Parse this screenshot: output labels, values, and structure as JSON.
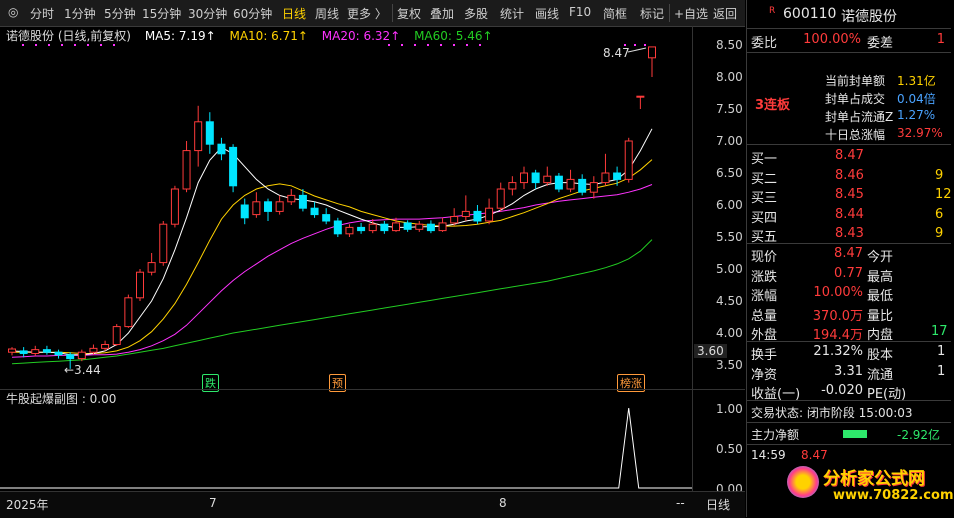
{
  "toolbar": {
    "items": [
      "分时",
      "1分钟",
      "5分钟",
      "15分钟",
      "30分钟",
      "60分钟",
      "日线",
      "周线",
      "更多 〉",
      "复权",
      "叠加",
      "多股",
      "统计",
      "画线",
      "F10",
      "简框",
      "标记",
      "+自选",
      "返回"
    ],
    "active": "日线"
  },
  "legend": {
    "stock": "诺德股份 (日线,前复权)",
    "ma5": "MA5: 7.19↑",
    "ma10": "MA10: 6.71↑",
    "ma20": "MA20: 6.32↑",
    "ma60": "MA60: 5.46↑"
  },
  "colors": {
    "up": "#ff3b3b",
    "down": "#00e5ff",
    "ma5": "#ffffff",
    "ma10": "#ffd200",
    "ma20": "#ff33ff",
    "ma60": "#22cc22",
    "accent": "#ffd200"
  },
  "chart": {
    "y_ticks": [
      "8.50",
      "8.00",
      "7.50",
      "7.00",
      "6.50",
      "6.00",
      "5.50",
      "5.00",
      "4.50",
      "4.00",
      "3.50"
    ],
    "high_label": "8.47",
    "low_label": "←3.44",
    "current_tag": "3.60",
    "tags": {
      "t1": "跌",
      "t2": "预",
      "t3": "榜涨"
    }
  },
  "chart_data": {
    "type": "candlestick",
    "ylim": [
      3.4,
      8.6
    ],
    "candles": [
      {
        "o": 3.7,
        "c": 3.75,
        "h": 3.78,
        "l": 3.65
      },
      {
        "o": 3.72,
        "c": 3.68,
        "h": 3.78,
        "l": 3.62
      },
      {
        "o": 3.68,
        "c": 3.74,
        "h": 3.8,
        "l": 3.64
      },
      {
        "o": 3.74,
        "c": 3.7,
        "h": 3.8,
        "l": 3.66
      },
      {
        "o": 3.7,
        "c": 3.66,
        "h": 3.74,
        "l": 3.6
      },
      {
        "o": 3.66,
        "c": 3.6,
        "h": 3.7,
        "l": 3.44
      },
      {
        "o": 3.6,
        "c": 3.7,
        "h": 3.74,
        "l": 3.56
      },
      {
        "o": 3.7,
        "c": 3.76,
        "h": 3.82,
        "l": 3.66
      },
      {
        "o": 3.76,
        "c": 3.82,
        "h": 3.88,
        "l": 3.72
      },
      {
        "o": 3.82,
        "c": 4.1,
        "h": 4.14,
        "l": 3.8
      },
      {
        "o": 4.1,
        "c": 4.55,
        "h": 4.6,
        "l": 4.08
      },
      {
        "o": 4.55,
        "c": 4.95,
        "h": 5.0,
        "l": 4.5
      },
      {
        "o": 4.95,
        "c": 5.1,
        "h": 5.25,
        "l": 4.9
      },
      {
        "o": 5.1,
        "c": 5.7,
        "h": 5.75,
        "l": 5.05
      },
      {
        "o": 5.7,
        "c": 6.25,
        "h": 6.3,
        "l": 5.65
      },
      {
        "o": 6.25,
        "c": 6.85,
        "h": 7.0,
        "l": 6.2
      },
      {
        "o": 6.85,
        "c": 7.3,
        "h": 7.55,
        "l": 6.6
      },
      {
        "o": 7.3,
        "c": 6.95,
        "h": 7.45,
        "l": 6.8
      },
      {
        "o": 6.95,
        "c": 6.8,
        "h": 7.05,
        "l": 6.7
      },
      {
        "o": 6.9,
        "c": 6.3,
        "h": 6.95,
        "l": 6.2
      },
      {
        "o": 6.0,
        "c": 5.8,
        "h": 6.1,
        "l": 5.7
      },
      {
        "o": 5.85,
        "c": 6.05,
        "h": 6.2,
        "l": 5.8
      },
      {
        "o": 6.05,
        "c": 5.9,
        "h": 6.1,
        "l": 5.75
      },
      {
        "o": 5.9,
        "c": 6.05,
        "h": 6.15,
        "l": 5.85
      },
      {
        "o": 6.05,
        "c": 6.15,
        "h": 6.25,
        "l": 6.0
      },
      {
        "o": 6.15,
        "c": 5.95,
        "h": 6.25,
        "l": 5.9
      },
      {
        "o": 5.95,
        "c": 5.85,
        "h": 6.05,
        "l": 5.8
      },
      {
        "o": 5.85,
        "c": 5.75,
        "h": 5.95,
        "l": 5.7
      },
      {
        "o": 5.75,
        "c": 5.55,
        "h": 5.8,
        "l": 5.5
      },
      {
        "o": 5.55,
        "c": 5.65,
        "h": 5.7,
        "l": 5.5
      },
      {
        "o": 5.65,
        "c": 5.6,
        "h": 5.72,
        "l": 5.55
      },
      {
        "o": 5.6,
        "c": 5.7,
        "h": 5.78,
        "l": 5.56
      },
      {
        "o": 5.7,
        "c": 5.6,
        "h": 5.75,
        "l": 5.55
      },
      {
        "o": 5.6,
        "c": 5.72,
        "h": 5.8,
        "l": 5.58
      },
      {
        "o": 5.72,
        "c": 5.62,
        "h": 5.76,
        "l": 5.58
      },
      {
        "o": 5.62,
        "c": 5.7,
        "h": 5.75,
        "l": 5.58
      },
      {
        "o": 5.7,
        "c": 5.6,
        "h": 5.76,
        "l": 5.56
      },
      {
        "o": 5.6,
        "c": 5.72,
        "h": 5.8,
        "l": 5.58
      },
      {
        "o": 5.72,
        "c": 5.82,
        "h": 5.95,
        "l": 5.68
      },
      {
        "o": 5.82,
        "c": 5.9,
        "h": 6.15,
        "l": 5.75
      },
      {
        "o": 5.9,
        "c": 5.75,
        "h": 6.0,
        "l": 5.7
      },
      {
        "o": 5.75,
        "c": 5.95,
        "h": 6.1,
        "l": 5.7
      },
      {
        "o": 5.95,
        "c": 6.25,
        "h": 6.35,
        "l": 5.9
      },
      {
        "o": 6.25,
        "c": 6.35,
        "h": 6.45,
        "l": 6.15
      },
      {
        "o": 6.35,
        "c": 6.5,
        "h": 6.6,
        "l": 6.25
      },
      {
        "o": 6.5,
        "c": 6.35,
        "h": 6.55,
        "l": 6.25
      },
      {
        "o": 6.35,
        "c": 6.45,
        "h": 6.6,
        "l": 6.3
      },
      {
        "o": 6.45,
        "c": 6.25,
        "h": 6.5,
        "l": 6.2
      },
      {
        "o": 6.25,
        "c": 6.4,
        "h": 6.55,
        "l": 6.2
      },
      {
        "o": 6.4,
        "c": 6.2,
        "h": 6.48,
        "l": 6.15
      },
      {
        "o": 6.2,
        "c": 6.35,
        "h": 6.45,
        "l": 6.1
      },
      {
        "o": 6.35,
        "c": 6.5,
        "h": 6.8,
        "l": 6.3
      },
      {
        "o": 6.5,
        "c": 6.4,
        "h": 6.6,
        "l": 6.3
      },
      {
        "o": 6.4,
        "c": 7.0,
        "h": 7.05,
        "l": 6.35
      },
      {
        "o": 7.7,
        "c": 7.7,
        "h": 7.7,
        "l": 7.5
      },
      {
        "o": 8.3,
        "c": 8.47,
        "h": 8.47,
        "l": 8.0
      }
    ],
    "ma5": [
      3.72,
      3.71,
      3.7,
      3.7,
      3.69,
      3.66,
      3.66,
      3.68,
      3.72,
      3.82,
      4.0,
      4.25,
      4.5,
      4.85,
      5.3,
      5.8,
      6.35,
      6.7,
      6.9,
      6.8,
      6.6,
      6.4,
      6.25,
      6.15,
      6.1,
      6.08,
      6.05,
      6.0,
      5.92,
      5.85,
      5.78,
      5.72,
      5.67,
      5.65,
      5.65,
      5.66,
      5.66,
      5.67,
      5.7,
      5.75,
      5.78,
      5.84,
      5.92,
      6.02,
      6.15,
      6.25,
      6.32,
      6.35,
      6.35,
      6.33,
      6.32,
      6.36,
      6.4,
      6.55,
      6.85,
      7.19
    ],
    "ma10": [
      3.7,
      3.7,
      3.7,
      3.7,
      3.7,
      3.69,
      3.68,
      3.68,
      3.69,
      3.72,
      3.78,
      3.88,
      4.02,
      4.22,
      4.46,
      4.76,
      5.1,
      5.45,
      5.78,
      6.0,
      6.15,
      6.25,
      6.3,
      6.33,
      6.3,
      6.22,
      6.14,
      6.08,
      6.02,
      5.97,
      5.9,
      5.85,
      5.8,
      5.75,
      5.72,
      5.7,
      5.68,
      5.67,
      5.67,
      5.68,
      5.7,
      5.73,
      5.76,
      5.82,
      5.88,
      5.95,
      6.02,
      6.1,
      6.16,
      6.22,
      6.26,
      6.3,
      6.34,
      6.42,
      6.55,
      6.71
    ],
    "ma20": [
      3.62,
      3.63,
      3.64,
      3.64,
      3.65,
      3.65,
      3.65,
      3.66,
      3.66,
      3.67,
      3.7,
      3.74,
      3.8,
      3.88,
      3.98,
      4.12,
      4.3,
      4.48,
      4.66,
      4.82,
      4.96,
      5.08,
      5.2,
      5.3,
      5.4,
      5.48,
      5.55,
      5.62,
      5.68,
      5.72,
      5.75,
      5.76,
      5.77,
      5.78,
      5.78,
      5.78,
      5.79,
      5.8,
      5.82,
      5.84,
      5.86,
      5.88,
      5.9,
      5.93,
      5.96,
      6.0,
      6.03,
      6.06,
      6.08,
      6.1,
      6.12,
      6.14,
      6.16,
      6.2,
      6.25,
      6.32
    ],
    "ma60": [
      3.52,
      3.53,
      3.54,
      3.55,
      3.56,
      3.57,
      3.58,
      3.6,
      3.62,
      3.64,
      3.67,
      3.7,
      3.73,
      3.76,
      3.8,
      3.84,
      3.88,
      3.92,
      3.96,
      4.0,
      4.03,
      4.06,
      4.09,
      4.12,
      4.15,
      4.18,
      4.21,
      4.24,
      4.27,
      4.3,
      4.33,
      4.36,
      4.39,
      4.42,
      4.45,
      4.48,
      4.51,
      4.54,
      4.57,
      4.6,
      4.63,
      4.66,
      4.69,
      4.72,
      4.75,
      4.78,
      4.81,
      4.85,
      4.89,
      4.93,
      4.97,
      5.02,
      5.08,
      5.16,
      5.28,
      5.46
    ]
  },
  "subchart": {
    "title": "牛股起爆副图 : 0.00",
    "y_ticks": [
      "1.00",
      "0.50",
      "0.00"
    ],
    "spike_index": 53,
    "values_nonzero": [
      {
        "i": 53,
        "v": 1.0
      }
    ]
  },
  "xaxis": {
    "start": "2025年",
    "m7": "7",
    "m8": "8",
    "right": "日线",
    "dash": "--"
  },
  "panel": {
    "code": "600110",
    "name": "诺德股份",
    "r_badge": "R",
    "weibi_label": "委比",
    "weibi": "100.00%",
    "weicha_label": "委差",
    "weicha": "1",
    "badge": "3连板",
    "info": [
      {
        "label": "当前封单额",
        "value": "1.31亿"
      },
      {
        "label": "封单占成交",
        "value": "0.04倍"
      },
      {
        "label": "封单占流通Z",
        "value": "1.27%"
      },
      {
        "label": "十日总涨幅",
        "value": "32.97%"
      }
    ],
    "book": [
      {
        "label": "买一",
        "price": "8.47",
        "vol": ""
      },
      {
        "label": "买二",
        "price": "8.46",
        "vol": "9"
      },
      {
        "label": "买三",
        "price": "8.45",
        "vol": "12"
      },
      {
        "label": "买四",
        "price": "8.44",
        "vol": "6"
      },
      {
        "label": "买五",
        "price": "8.43",
        "vol": "9"
      }
    ],
    "quote": [
      {
        "l1": "现价",
        "v1": "8.47",
        "l2": "今开",
        "v2": ""
      },
      {
        "l1": "涨跌",
        "v1": "0.77",
        "l2": "最高",
        "v2": ""
      },
      {
        "l1": "涨幅",
        "v1": "10.00%",
        "l2": "最低",
        "v2": ""
      },
      {
        "l1": "总量",
        "v1": "370.0万",
        "l2": "量比",
        "v2": ""
      },
      {
        "l1": "外盘",
        "v1": "194.4万",
        "l2": "内盘",
        "v2": "17"
      }
    ],
    "stats": [
      {
        "l1": "换手",
        "v1": "21.32%",
        "l2": "股本",
        "v2": "1"
      },
      {
        "l1": "净资",
        "v1": "3.31",
        "l2": "流通",
        "v2": "1"
      },
      {
        "l1": "收益(一)",
        "v1": "-0.020",
        "l2": "PE(动)",
        "v2": ""
      }
    ],
    "trade_status": "交易状态: 闭市阶段 15:00:03",
    "main_flow_label": "主力净额",
    "main_flow": "-2.92亿",
    "time": "14:59",
    "tick_price": "8.47",
    "watermark": "分析家公式网",
    "watermark_url": "www.70822.com"
  }
}
